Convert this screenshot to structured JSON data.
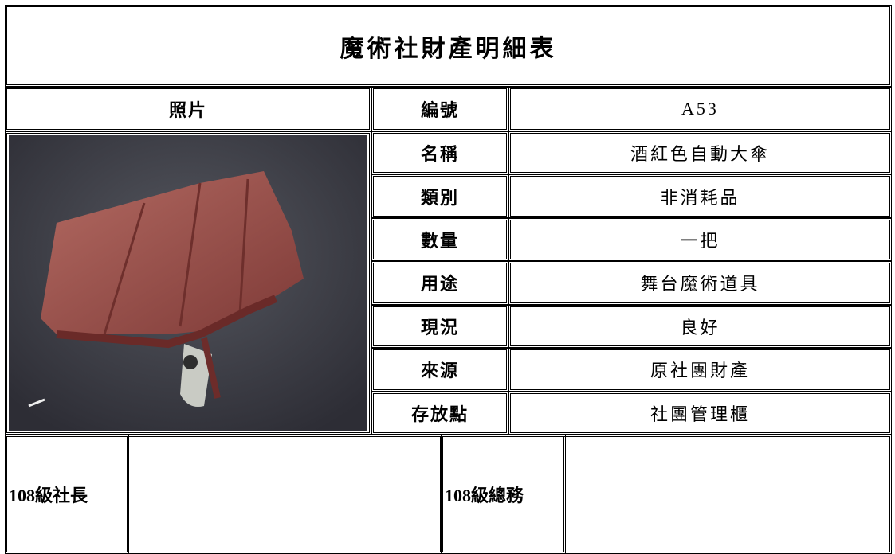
{
  "title": "魔術社財產明細表",
  "photo_header": "照片",
  "fields": [
    {
      "label": "編號",
      "value": "A53"
    },
    {
      "label": "名稱",
      "value": "酒紅色自動大傘"
    },
    {
      "label": "類別",
      "value": "非消耗品"
    },
    {
      "label": "數量",
      "value": "一把"
    },
    {
      "label": "用途",
      "value": "舞台魔術道具"
    },
    {
      "label": "現況",
      "value": "良好"
    },
    {
      "label": "來源",
      "value": "原社團財產"
    },
    {
      "label": "存放點",
      "value": "社團管理櫃"
    }
  ],
  "signatures": [
    {
      "label": "108級社長"
    },
    {
      "label": "108級總務"
    }
  ]
}
